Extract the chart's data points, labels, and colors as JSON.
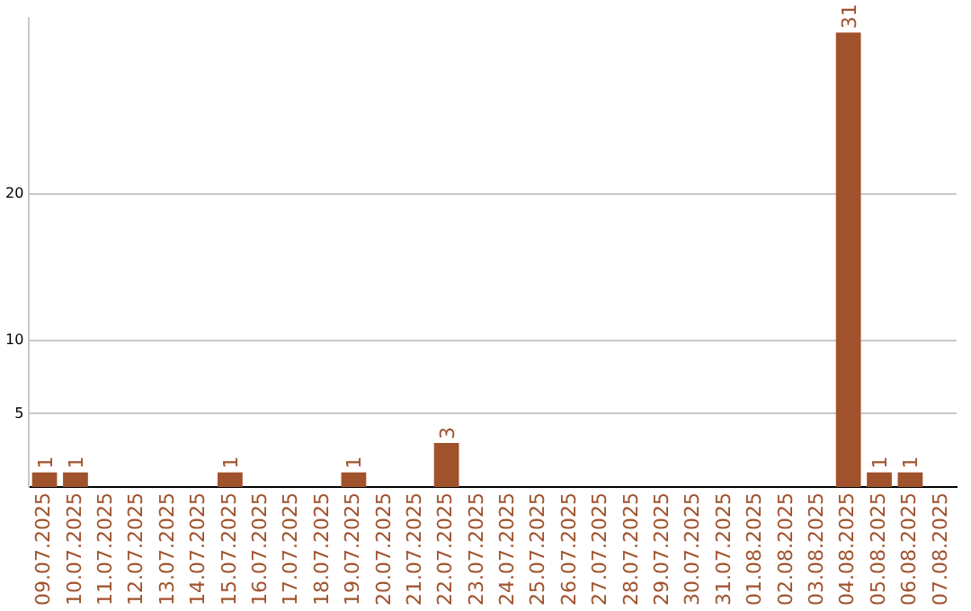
{
  "chart_data": {
    "type": "bar",
    "categories": [
      "09.07.2025",
      "10.07.2025",
      "11.07.2025",
      "12.07.2025",
      "13.07.2025",
      "14.07.2025",
      "15.07.2025",
      "16.07.2025",
      "17.07.2025",
      "18.07.2025",
      "19.07.2025",
      "20.07.2025",
      "21.07.2025",
      "22.07.2025",
      "23.07.2025",
      "24.07.2025",
      "25.07.2025",
      "26.07.2025",
      "27.07.2025",
      "28.07.2025",
      "29.07.2025",
      "30.07.2025",
      "31.07.2025",
      "01.08.2025",
      "02.08.2025",
      "03.08.2025",
      "04.08.2025",
      "05.08.2025",
      "06.08.2025",
      "07.08.2025"
    ],
    "values": [
      1,
      1,
      0,
      0,
      0,
      0,
      1,
      0,
      0,
      0,
      1,
      0,
      0,
      3,
      0,
      0,
      0,
      0,
      0,
      0,
      0,
      0,
      0,
      0,
      0,
      0,
      31,
      1,
      1,
      0
    ],
    "value_labels": [
      "1",
      "1",
      null,
      null,
      null,
      null,
      "1",
      null,
      null,
      null,
      "1",
      null,
      null,
      "3",
      null,
      null,
      null,
      null,
      null,
      null,
      null,
      null,
      null,
      null,
      null,
      null,
      "31",
      "1",
      "1",
      null
    ],
    "color": "#a0522d",
    "ylim": [
      0,
      32
    ],
    "yticks": [
      5,
      10,
      20
    ],
    "grid": "y",
    "legend": false
  }
}
